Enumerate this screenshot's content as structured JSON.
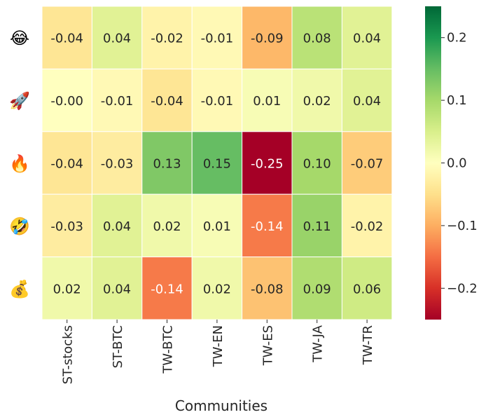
{
  "chart_data": {
    "type": "heatmap",
    "title": "",
    "xlabel": "Communities",
    "ylabel": "",
    "columns": [
      "ST-stocks",
      "ST-BTC",
      "TW-BTC",
      "TW-EN",
      "TW-ES",
      "TW-JA",
      "TW-TR"
    ],
    "rows": [
      {
        "icon": "face-with-tears-of-joy-icon",
        "glyph": "😂",
        "values": [
          -0.04,
          0.04,
          -0.02,
          -0.01,
          -0.09,
          0.08,
          0.04
        ],
        "labels": [
          "-0.04",
          "0.04",
          "-0.02",
          "-0.01",
          "-0.09",
          "0.08",
          "0.04"
        ]
      },
      {
        "icon": "rocket-icon",
        "glyph": "🚀",
        "values": [
          0.0,
          -0.01,
          -0.04,
          -0.01,
          0.01,
          0.02,
          0.04
        ],
        "labels": [
          "-0.00",
          "-0.01",
          "-0.04",
          "-0.01",
          "0.01",
          "0.02",
          "0.04"
        ]
      },
      {
        "icon": "fire-icon",
        "glyph": "🔥",
        "values": [
          -0.04,
          -0.03,
          0.13,
          0.15,
          -0.25,
          0.1,
          -0.07
        ],
        "labels": [
          "-0.04",
          "-0.03",
          "0.13",
          "0.15",
          "-0.25",
          "0.10",
          "-0.07"
        ]
      },
      {
        "icon": "rolling-on-floor-laughing-icon",
        "glyph": "🤣",
        "values": [
          -0.03,
          0.04,
          0.02,
          0.01,
          -0.14,
          0.11,
          -0.02
        ],
        "labels": [
          "-0.03",
          "0.04",
          "0.02",
          "0.01",
          "-0.14",
          "0.11",
          "-0.02"
        ]
      },
      {
        "icon": "money-bag-icon",
        "glyph": "💰",
        "values": [
          0.02,
          0.04,
          -0.14,
          0.02,
          -0.08,
          0.09,
          0.06
        ],
        "labels": [
          "0.02",
          "0.04",
          "-0.14",
          "0.02",
          "-0.08",
          "0.09",
          "0.06"
        ]
      }
    ],
    "colormap": "RdYlGn",
    "vmin": -0.25,
    "vmax": 0.25,
    "colorbar_ticks": [
      0.2,
      0.1,
      0.0,
      -0.1,
      -0.2
    ],
    "colorbar_tick_labels": [
      "0.2",
      "0.1",
      "0.0",
      "−0.1",
      "−0.2"
    ],
    "legend_position": "right"
  }
}
